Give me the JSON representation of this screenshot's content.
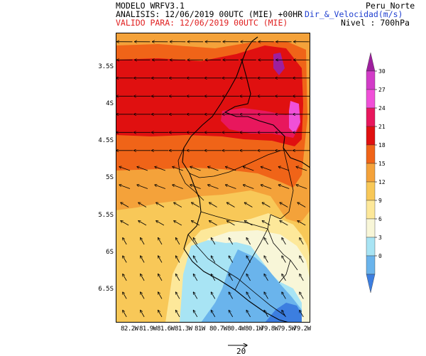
{
  "header": {
    "model": "MODELO WRFV3.1",
    "analysis": "ANALISIS: 12/06/2019 00UTC (MIE) +00HR",
    "valid": "VALIDO PARA: 12/06/2019 00UTC (MIE)",
    "domain": "Peru_Norte",
    "variable": "Dir_&_Velocidad(m/s)",
    "level": "Nivel : 700hPa"
  },
  "axes": {
    "lat_labels": [
      "3.5S",
      "4S",
      "4.5S",
      "5S",
      "5.5S",
      "6S",
      "6.5S"
    ],
    "lon_labels": [
      "82.2W",
      "81.9W",
      "81.6W",
      "81.3W",
      "81W",
      "80.7W",
      "80.4W",
      "80.1W",
      "79.8W",
      "79.5W",
      "79.2W"
    ]
  },
  "colorbar": {
    "ticks": [
      "30",
      "27",
      "24",
      "21",
      "18",
      "15",
      "12",
      "9",
      "6",
      "3",
      "0"
    ],
    "colors": [
      "#9e1f9e",
      "#d23cc8",
      "#f050d8",
      "#e8175d",
      "#e01010",
      "#f06418",
      "#f4a23a",
      "#f8c858",
      "#fde89a",
      "#f8f6d8",
      "#a8e4f4",
      "#6ab4ec",
      "#3c7ee0"
    ]
  },
  "reference_vector": {
    "label": "20"
  },
  "colors": {
    "title_red": "#e02020",
    "title_blue": "#2040d0",
    "coast": "#000000"
  }
}
